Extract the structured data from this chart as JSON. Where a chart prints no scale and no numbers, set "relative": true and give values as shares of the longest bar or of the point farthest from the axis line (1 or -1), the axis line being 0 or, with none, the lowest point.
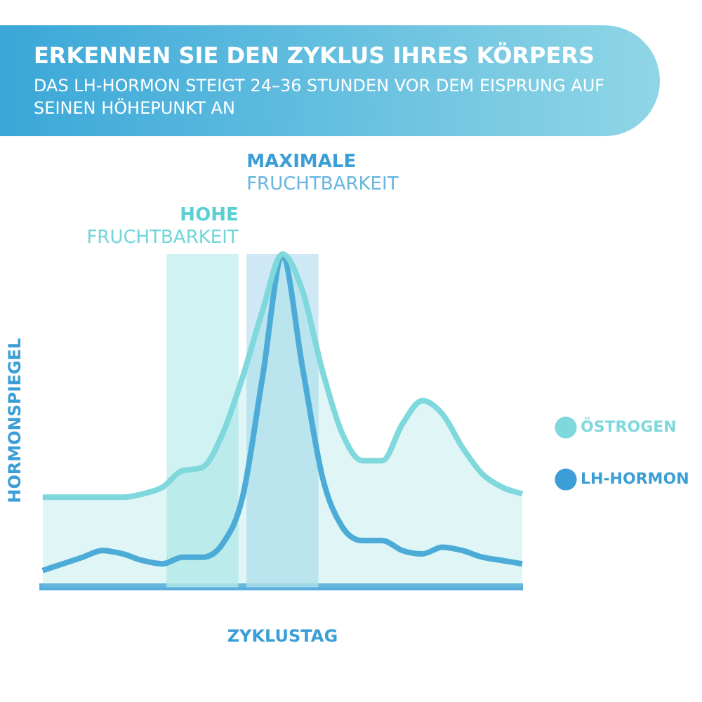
{
  "chart_data": {
    "type": "line",
    "title": "ERKENNEN SIE DEN ZYKLUS IHRES KÖRPERS",
    "subtitle": "DAS LH-HORMON STEIGT 24–36 STUNDEN VOR DEM EISPRUNG AUF SEINEN HÖHEPUNKT AN",
    "xlabel": "ZYKLUSTAG",
    "ylabel": "HORMONSPIEGEL",
    "relative": true,
    "legend": "right",
    "marker": "none",
    "categories": [
      null,
      null,
      null,
      null,
      null,
      null,
      null,
      null,
      null,
      null,
      null,
      null,
      null,
      null,
      null,
      null,
      null,
      null,
      null,
      null,
      null,
      null,
      null,
      null,
      null
    ],
    "series": [
      {
        "name": "ÖSTROGEN",
        "type": "area",
        "color": "#7fd8dc",
        "values": [
          0.27,
          0.27,
          0.27,
          0.27,
          0.27,
          0.28,
          0.3,
          0.35,
          0.36,
          0.46,
          0.63,
          0.83,
          1.0,
          0.89,
          0.65,
          0.46,
          0.38,
          0.38,
          0.49,
          0.56,
          0.52,
          0.42,
          0.34,
          0.3,
          0.28
        ]
      },
      {
        "name": "LH-HORMON",
        "type": "line",
        "color": "#3b9ed6",
        "values": [
          0.05,
          0.07,
          0.09,
          0.11,
          0.1,
          0.08,
          0.07,
          0.09,
          0.09,
          0.13,
          0.27,
          0.63,
          0.99,
          0.66,
          0.33,
          0.18,
          0.14,
          0.14,
          0.11,
          0.1,
          0.12,
          0.11,
          0.09,
          0.08,
          0.07
        ]
      }
    ],
    "annotations": [
      "HOHE FRUCHTBARKEIT",
      "MAXIMALE FRUCHTBARKEIT"
    ]
  }
}
